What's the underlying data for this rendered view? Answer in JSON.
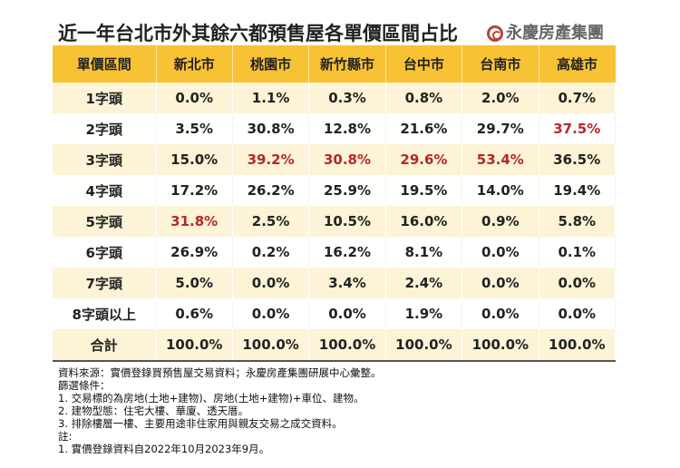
{
  "title": "近一年台北市外其餘六都預售屋各單價區間占比",
  "logo": {
    "text": "永慶房產集團",
    "icon": "yungching-logo-icon",
    "color": "#b5443a"
  },
  "colors": {
    "header": "#f8c235",
    "stripe": "#fdf3d6",
    "highlight": "#b22a2a"
  },
  "table": {
    "headers": [
      "單價區間",
      "新北市",
      "桃園市",
      "新竹縣市",
      "台中市",
      "台南市",
      "高雄市"
    ],
    "rows": [
      {
        "label": "1字頭",
        "values": [
          "0.0%",
          "1.1%",
          "0.3%",
          "0.8%",
          "2.0%",
          "0.7%"
        ],
        "highlight": []
      },
      {
        "label": "2字頭",
        "values": [
          "3.5%",
          "30.8%",
          "12.8%",
          "21.6%",
          "29.7%",
          "37.5%"
        ],
        "highlight": [
          5
        ]
      },
      {
        "label": "3字頭",
        "values": [
          "15.0%",
          "39.2%",
          "30.8%",
          "29.6%",
          "53.4%",
          "36.5%"
        ],
        "highlight": [
          1,
          2,
          3,
          4
        ]
      },
      {
        "label": "4字頭",
        "values": [
          "17.2%",
          "26.2%",
          "25.9%",
          "19.5%",
          "14.0%",
          "19.4%"
        ],
        "highlight": []
      },
      {
        "label": "5字頭",
        "values": [
          "31.8%",
          "2.5%",
          "10.5%",
          "16.0%",
          "0.9%",
          "5.8%"
        ],
        "highlight": [
          0
        ]
      },
      {
        "label": "6字頭",
        "values": [
          "26.9%",
          "0.2%",
          "16.2%",
          "8.1%",
          "0.0%",
          "0.1%"
        ],
        "highlight": []
      },
      {
        "label": "7字頭",
        "values": [
          "5.0%",
          "0.0%",
          "3.4%",
          "2.4%",
          "0.0%",
          "0.0%"
        ],
        "highlight": []
      },
      {
        "label": "8字頭以上",
        "values": [
          "0.6%",
          "0.0%",
          "0.0%",
          "1.9%",
          "0.0%",
          "0.0%"
        ],
        "highlight": []
      },
      {
        "label": "合計",
        "values": [
          "100.0%",
          "100.0%",
          "100.0%",
          "100.0%",
          "100.0%",
          "100.0%"
        ],
        "highlight": []
      }
    ]
  },
  "notes": [
    "資料來源：實價登錄買預售屋交易資料；永慶房產集團研展中心彙整。",
    "篩選條件：",
    "1. 交易標的為房地(土地+建物)、房地(土地+建物)+車位、建物。",
    "2. 建物型態：住宅大樓、華廈、透天厝。",
    "3. 排除樓層一樓、主要用途非住家用與親友交易之成交資料。",
    "註:",
    "1. 實價登錄資料自2022年10月2023年9月。"
  ]
}
